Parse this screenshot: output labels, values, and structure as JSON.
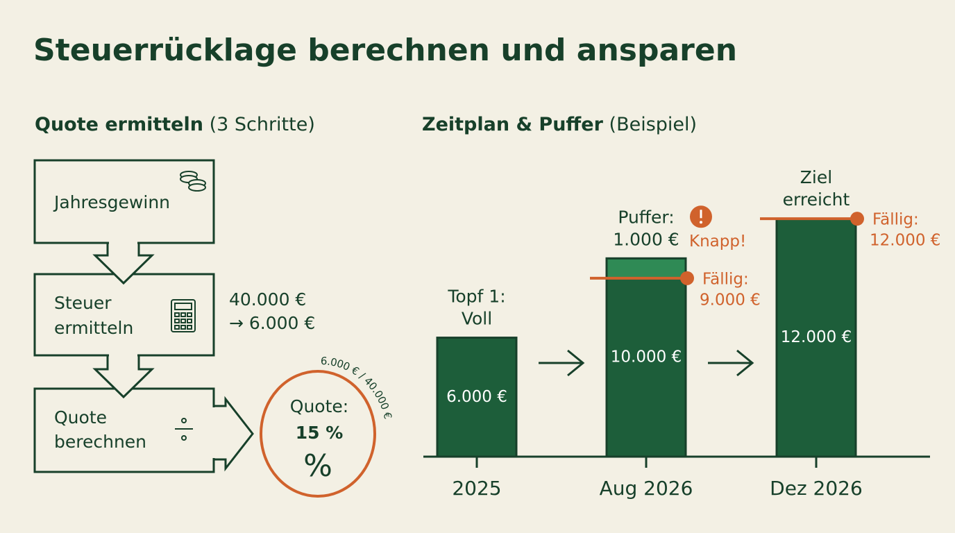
{
  "header": {
    "title": "Steuerrücklage berechnen und ansparen"
  },
  "steps_panel": {
    "title": "Quote ermitteln",
    "title_note": "(3 Schritte)",
    "steps": [
      {
        "lines": [
          "Jahresgewinn"
        ]
      },
      {
        "lines": [
          "Steuer",
          "ermitteln"
        ],
        "side_lines": [
          "40.000 €",
          "→ 6.000 €"
        ]
      },
      {
        "lines": [
          "Quote",
          "berechnen"
        ]
      }
    ],
    "result": {
      "caption": "Quote:",
      "value": "15 %",
      "symbol": "%",
      "formula": "6.000 € / 40.000 €"
    }
  },
  "timeline": {
    "title": "Zeitplan & Puffer",
    "title_note": "(Beispiel)",
    "ylim": [
      0,
      14000
    ],
    "periods": [
      {
        "label": "2025",
        "value": 6000,
        "value_label": "6.000 €",
        "note_lines": [
          "Topf 1:",
          "Voll"
        ]
      },
      {
        "label": "Aug 2026",
        "value": 10000,
        "value_label": "10.000 €",
        "buffer": {
          "value": 1000,
          "caption": "Puffer:",
          "label": "1.000 €",
          "warning": "Knapp!"
        },
        "due": {
          "value": 9000,
          "caption": "Fällig:",
          "label": "9.000 €"
        }
      },
      {
        "label": "Dez 2026",
        "value": 12000,
        "value_label": "12.000 €",
        "note_lines": [
          "Ziel",
          "erreicht"
        ],
        "due": {
          "value": 12000,
          "caption": "Fällig:",
          "label": "12.000 €"
        }
      }
    ]
  }
}
